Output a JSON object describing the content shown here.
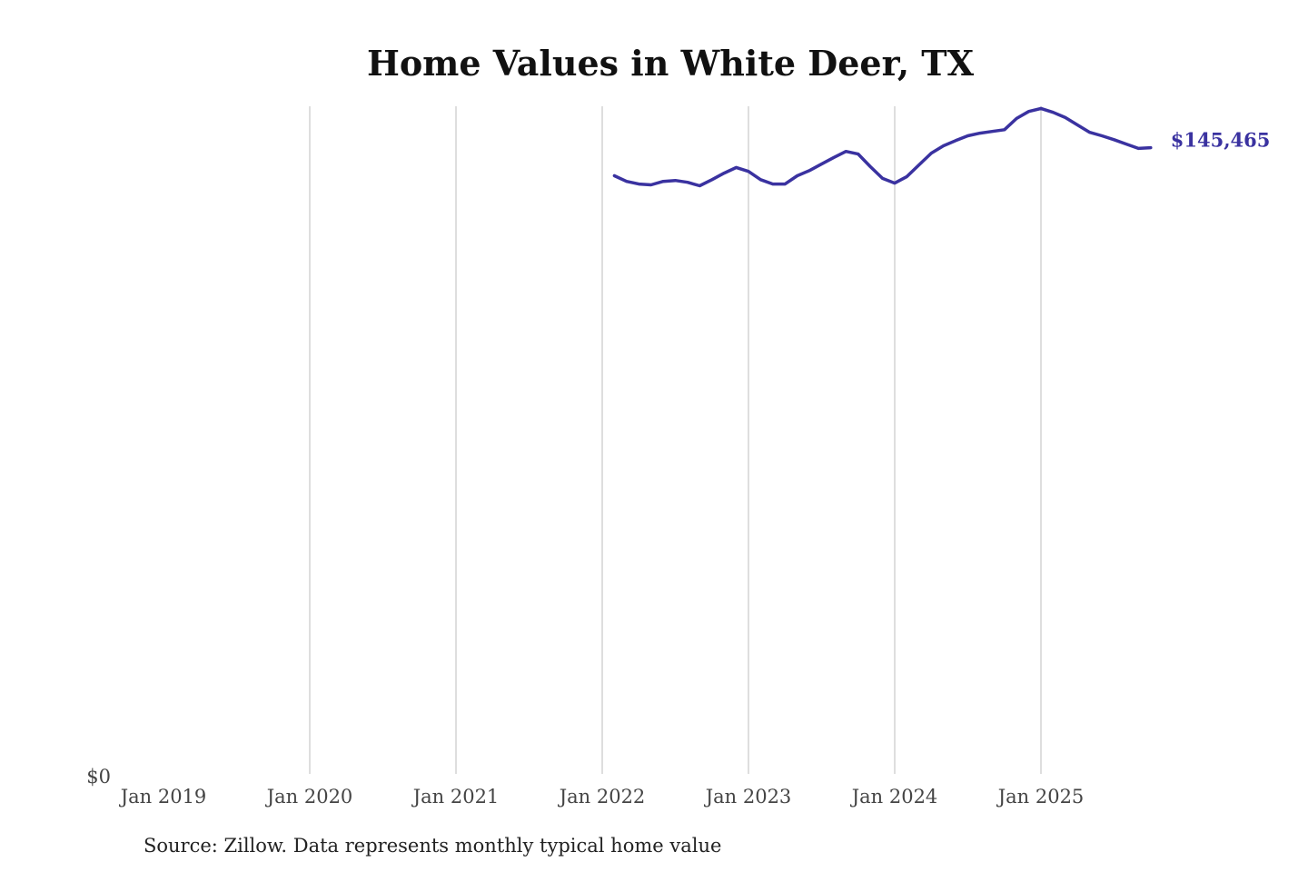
{
  "chart_data": {
    "type": "line",
    "title": "Home Values in White Deer, TX",
    "source": "Source: Zillow. Data represents monthly typical home value",
    "xlabel": "",
    "ylabel": "",
    "x_ticks": [
      "Jan 2019",
      "Jan 2020",
      "Jan 2021",
      "Jan 2022",
      "Jan 2023",
      "Jan 2024",
      "Jan 2025"
    ],
    "y_ticks": [
      "$0"
    ],
    "xlim": [
      "2019-01",
      "2025-10"
    ],
    "ylim": [
      0,
      155000
    ],
    "grid": "vertical",
    "line_color": "#3a32a0",
    "grid_color": "#c8c8c8",
    "end_label": "$145,465",
    "x": [
      "2022-02",
      "2022-03",
      "2022-04",
      "2022-05",
      "2022-06",
      "2022-07",
      "2022-08",
      "2022-09",
      "2022-10",
      "2022-11",
      "2022-12",
      "2023-01",
      "2023-02",
      "2023-03",
      "2023-04",
      "2023-05",
      "2023-06",
      "2023-07",
      "2023-08",
      "2023-09",
      "2023-10",
      "2023-11",
      "2023-12",
      "2024-01",
      "2024-02",
      "2024-03",
      "2024-04",
      "2024-05",
      "2024-06",
      "2024-07",
      "2024-08",
      "2024-09",
      "2024-10",
      "2024-11",
      "2024-12",
      "2025-01",
      "2025-02",
      "2025-03",
      "2025-04",
      "2025-05",
      "2025-06",
      "2025-07",
      "2025-08",
      "2025-09",
      "2025-10"
    ],
    "values": [
      139000,
      137700,
      137100,
      136900,
      137700,
      137900,
      137500,
      136700,
      138100,
      139600,
      140900,
      140000,
      138100,
      137100,
      137100,
      139000,
      140200,
      141700,
      143200,
      144600,
      144000,
      141100,
      138400,
      137300,
      138800,
      141500,
      144200,
      145900,
      147100,
      148200,
      148800,
      149200,
      149600,
      152200,
      153800,
      154500,
      153600,
      152400,
      150700,
      149000,
      148200,
      147300,
      146300,
      145300,
      145465
    ]
  }
}
